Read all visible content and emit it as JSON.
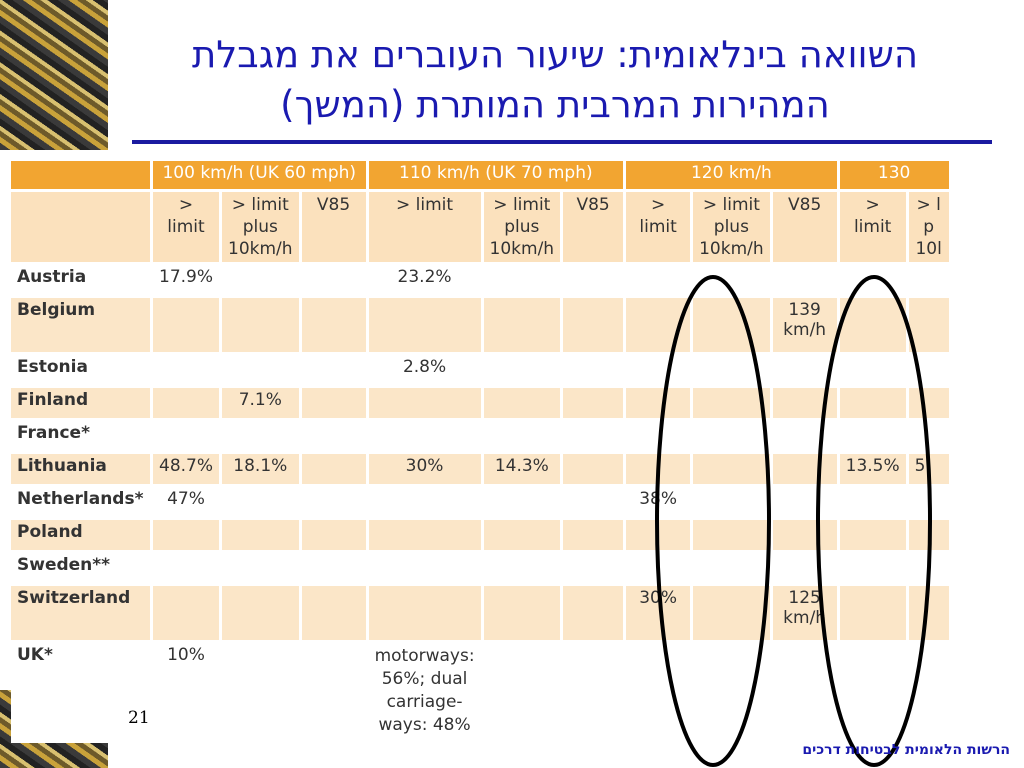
{
  "title_line1": "השוואה בינלאומית: שיעור העוברים את מגבלת",
  "title_line2": "המהירות המרבית המותרת (המשך)",
  "page_number": "21",
  "footer": "הרשות הלאומית לבטיחות דרכים",
  "groups": [
    "100 km/h (UK 60 mph)",
    "110 km/h (UK 70 mph)",
    "120 km/h",
    "130"
  ],
  "subheaders": {
    "limit": "> limit",
    "plus": "> limit plus 10km/h",
    "v85": "V85",
    "last_plus": "> l p 10l"
  },
  "rows": [
    {
      "country": "Austria",
      "cells": [
        "17.9%",
        "",
        "",
        "23.2%",
        "",
        "",
        "",
        "",
        "",
        "",
        ""
      ]
    },
    {
      "country": "Belgium",
      "cells": [
        "",
        "",
        "",
        "",
        "",
        "",
        "",
        "",
        "139 km/h",
        "",
        ""
      ]
    },
    {
      "country": "Estonia",
      "cells": [
        "",
        "",
        "",
        "2.8%",
        "",
        "",
        "",
        "",
        "",
        "",
        ""
      ]
    },
    {
      "country": "Finland",
      "cells": [
        "",
        "7.1%",
        "",
        "",
        "",
        "",
        "",
        "",
        "",
        "",
        ""
      ]
    },
    {
      "country": "France*",
      "cells": [
        "",
        "",
        "",
        "",
        "",
        "",
        "",
        "",
        "",
        "",
        ""
      ]
    },
    {
      "country": "Lithuania",
      "cells": [
        "48.7%",
        "18.1%",
        "",
        "30%",
        "14.3%",
        "",
        "",
        "",
        "",
        "13.5%",
        "5."
      ]
    },
    {
      "country": "Netherlands*",
      "cells": [
        "47%",
        "",
        "",
        "",
        "",
        "",
        "38%",
        "",
        "",
        "",
        ""
      ]
    },
    {
      "country": "Poland",
      "cells": [
        "",
        "",
        "",
        "",
        "",
        "",
        "",
        "",
        "",
        "",
        ""
      ]
    },
    {
      "country": "Sweden**",
      "cells": [
        "",
        "",
        "",
        "",
        "",
        "",
        "",
        "",
        "",
        "",
        ""
      ]
    },
    {
      "country": "Switzerland",
      "cells": [
        "",
        "",
        "",
        "",
        "",
        "",
        "30%",
        "",
        "125 km/h",
        "",
        ""
      ]
    },
    {
      "country": "UK*",
      "cells": [
        "10%",
        "",
        "",
        "motorways: 56%; dual carriage-ways: 48%",
        "",
        "",
        "",
        "",
        "",
        "",
        ""
      ]
    }
  ]
}
